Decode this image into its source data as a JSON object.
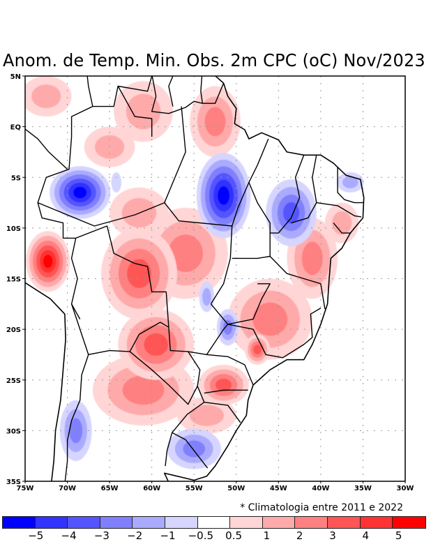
{
  "title": "Anom. de Temp. Min. Obs. 2m CPC (oC) Nov/2023",
  "note": "* Climatologia entre 2011 e 2022",
  "chart_data": {
    "type": "heatmap",
    "title": "Anom. de Temp. Min. Obs. 2m CPC (oC) Nov/2023",
    "subtitle": "* Climatologia entre 2011 e 2022",
    "units": "oC",
    "xlabel": "",
    "ylabel": "",
    "lon_range": [
      -75,
      -30
    ],
    "lat_range": [
      -35,
      5
    ],
    "grid": true,
    "x_ticks": [
      {
        "value": -75,
        "label": "75W"
      },
      {
        "value": -70,
        "label": "70W"
      },
      {
        "value": -65,
        "label": "65W"
      },
      {
        "value": -60,
        "label": "60W"
      },
      {
        "value": -55,
        "label": "55W"
      },
      {
        "value": -50,
        "label": "50W"
      },
      {
        "value": -45,
        "label": "45W"
      },
      {
        "value": -40,
        "label": "40W"
      },
      {
        "value": -35,
        "label": "35W"
      },
      {
        "value": -30,
        "label": "30W"
      }
    ],
    "y_ticks": [
      {
        "value": 5,
        "label": "5N"
      },
      {
        "value": 0,
        "label": "EQ"
      },
      {
        "value": -5,
        "label": "5S"
      },
      {
        "value": -10,
        "label": "10S"
      },
      {
        "value": -15,
        "label": "15S"
      },
      {
        "value": -20,
        "label": "20S"
      },
      {
        "value": -25,
        "label": "25S"
      },
      {
        "value": -30,
        "label": "30S"
      },
      {
        "value": -35,
        "label": "35S"
      }
    ],
    "colorbar": {
      "placement": "bottom",
      "levels": [
        "-5",
        "-4",
        "-3",
        "-2",
        "-1",
        "-0.5",
        "0.5",
        "1",
        "2",
        "3",
        "4",
        "5"
      ],
      "colors": [
        "#0000ff",
        "#3333ff",
        "#5555ff",
        "#8080ff",
        "#aaaaff",
        "#d5d5ff",
        "#ffffff",
        "#ffd5d5",
        "#ffaaaa",
        "#ff8080",
        "#ff5555",
        "#ff3333",
        "#ff0000"
      ]
    },
    "anomaly_regions": [
      {
        "name": "western-amazon-cold",
        "lon": -68.5,
        "lat": -6.5,
        "rlon": 3.6,
        "rlat": 2.6,
        "peak": -5.5
      },
      {
        "name": "para-cold",
        "lon": -51.5,
        "lat": -6.8,
        "rlon": 3.2,
        "rlat": 4.2,
        "peak": -5.5
      },
      {
        "name": "maranhao-piaui-cold",
        "lon": -43.5,
        "lat": -8.5,
        "rlon": 3.0,
        "rlat": 3.3,
        "peak": -3.5
      },
      {
        "name": "rio-grande-do-norte-cold",
        "lon": -36.5,
        "lat": -5.5,
        "rlon": 1.6,
        "rlat": 1.0,
        "peak": -1.5
      },
      {
        "name": "goias-cold",
        "lon": -53.5,
        "lat": -16.8,
        "rlon": 0.9,
        "rlat": 1.5,
        "peak": -1.5
      },
      {
        "name": "mato-grosso-do-sul-cold",
        "lon": -51.0,
        "lat": -19.8,
        "rlon": 1.3,
        "rlat": 1.8,
        "peak": -2.5
      },
      {
        "name": "uruguay-cold",
        "lon": -55.0,
        "lat": -31.8,
        "rlon": 3.2,
        "rlat": 2.0,
        "peak": -2.5
      },
      {
        "name": "argentina-andes-cold",
        "lon": -69.0,
        "lat": -30.0,
        "rlon": 1.9,
        "rlat": 3.0,
        "peak": -2.5
      },
      {
        "name": "amazonas-north-cold",
        "lon": -64.2,
        "lat": -5.5,
        "rlon": 0.6,
        "rlat": 1.0,
        "peak": -0.8
      },
      {
        "name": "peru-bolivia-warm",
        "lon": -72.3,
        "lat": -13.3,
        "rlon": 2.6,
        "rlat": 3.0,
        "peak": 5.5
      },
      {
        "name": "bolivia-warm",
        "lon": -61.5,
        "lat": -14.5,
        "rlon": 4.5,
        "rlat": 4.5,
        "peak": 3.5
      },
      {
        "name": "paraguay-warm",
        "lon": -59.5,
        "lat": -21.5,
        "rlon": 4.5,
        "rlat": 3.5,
        "peak": 3.8
      },
      {
        "name": "mato-grosso-warm",
        "lon": -56.0,
        "lat": -12.5,
        "rlon": 5.0,
        "rlat": 4.5,
        "peak": 2.2
      },
      {
        "name": "argentina-north-warm",
        "lon": -61.0,
        "lat": -26.0,
        "rlon": 6.0,
        "rlat": 3.5,
        "peak": 2.5
      },
      {
        "name": "bahia-warm",
        "lon": -41.0,
        "lat": -13.0,
        "rlon": 3.0,
        "rlat": 4.0,
        "peak": 2.8
      },
      {
        "name": "minas-warm",
        "lon": -46.0,
        "lat": -19.0,
        "rlon": 5.0,
        "rlat": 4.0,
        "peak": 2.3
      },
      {
        "name": "sao-paulo-warm",
        "lon": -47.5,
        "lat": -22.0,
        "rlon": 1.5,
        "rlat": 1.5,
        "peak": 3.5
      },
      {
        "name": "parana-warm",
        "lon": -51.5,
        "lat": -25.5,
        "rlon": 3.0,
        "rlat": 2.0,
        "peak": 3.2
      },
      {
        "name": "rio-grande-do-sul-warm",
        "lon": -53.5,
        "lat": -28.5,
        "rlon": 3.5,
        "rlat": 1.8,
        "peak": 1.8
      },
      {
        "name": "roraima-warm",
        "lon": -61.0,
        "lat": 1.5,
        "rlon": 3.5,
        "rlat": 3.0,
        "peak": 1.8
      },
      {
        "name": "amapa-warm",
        "lon": -52.5,
        "lat": 0.5,
        "rlon": 3.0,
        "rlat": 3.5,
        "peak": 2.3
      },
      {
        "name": "amazon-central-warm",
        "lon": -65.0,
        "lat": -2.0,
        "rlon": 3.0,
        "rlat": 2.0,
        "peak": 1.6
      },
      {
        "name": "colombia-warm",
        "lon": -72.5,
        "lat": 3.0,
        "rlon": 3.0,
        "rlat": 2.0,
        "peak": 1.2
      },
      {
        "name": "rondonia-warm",
        "lon": -61.5,
        "lat": -8.5,
        "rlon": 3.5,
        "rlat": 2.5,
        "peak": 1.3
      },
      {
        "name": "nordeste-east-warm",
        "lon": -37.5,
        "lat": -9.5,
        "rlon": 2.0,
        "rlat": 2.0,
        "peak": 1.8
      }
    ]
  }
}
